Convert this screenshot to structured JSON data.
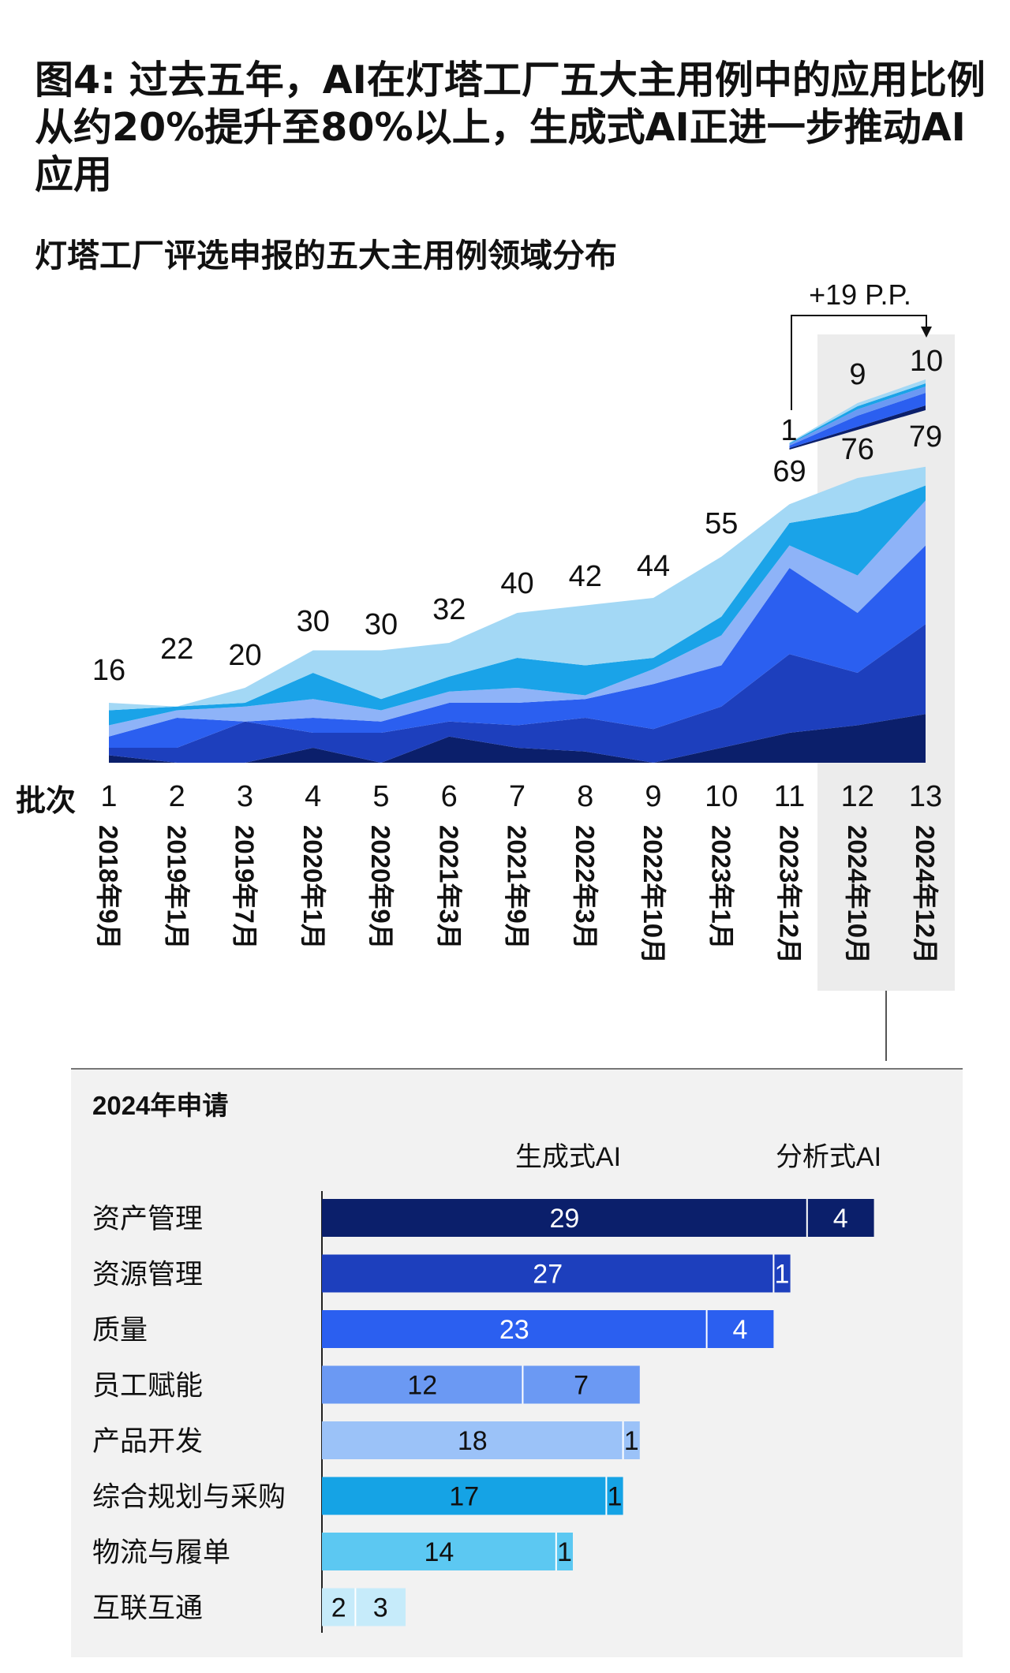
{
  "title": "图4: 过去五年，AI在灯塔工厂五大主用例中的应用比例从约20%提升至80%以上，生成式AI正进一步推动AI应用",
  "subtitle": "灯塔工厂评选申报的五大主用例领域分布",
  "chart_data": [
    {
      "type": "area",
      "title": "灯塔工厂评选申报的五大主用例领域分布",
      "xlabel": "批次",
      "categories": [
        "1",
        "2",
        "3",
        "4",
        "5",
        "6",
        "7",
        "8",
        "9",
        "10",
        "11",
        "12",
        "13"
      ],
      "dates": [
        "2018年9月",
        "2019年1月",
        "2019年7月",
        "2020年1月",
        "2020年9月",
        "2021年3月",
        "2021年9月",
        "2022年3月",
        "2022年10月",
        "2023年1月",
        "2023年12月",
        "2024年10月",
        "2024年12月"
      ],
      "totals": [
        16,
        22,
        20,
        30,
        30,
        32,
        40,
        42,
        44,
        55,
        69,
        76,
        79
      ],
      "genai_totals": [
        1,
        9,
        10
      ],
      "genai_batches": [
        "11",
        "12",
        "13"
      ],
      "stacked_series_estimated": [
        {
          "name": "layer1",
          "color": "#0b1f6b",
          "values": [
            2,
            0,
            0,
            4,
            0,
            7,
            4,
            3,
            0,
            4,
            8,
            10,
            13
          ]
        },
        {
          "name": "layer2",
          "color": "#1d3fbd",
          "values": [
            2,
            4,
            11,
            4,
            8,
            4,
            6,
            9,
            9,
            11,
            21,
            14,
            24
          ]
        },
        {
          "name": "layer3",
          "color": "#2b5ff0",
          "values": [
            3,
            8,
            0,
            4,
            3,
            5,
            6,
            5,
            12,
            11,
            23,
            16,
            21
          ]
        },
        {
          "name": "layer4",
          "color": "#8eb3f8",
          "values": [
            3,
            2,
            4,
            5,
            3,
            3,
            4,
            1,
            4,
            8,
            6,
            10,
            12
          ]
        },
        {
          "name": "layer5",
          "color": "#1aa3e8",
          "values": [
            4,
            1,
            1,
            7,
            3,
            4,
            8,
            8,
            3,
            5,
            6,
            17,
            4
          ]
        },
        {
          "name": "layer6",
          "color": "#a3d8f5",
          "values": [
            2,
            0,
            4,
            6,
            13,
            9,
            12,
            16,
            16,
            16,
            5,
            9,
            5
          ]
        }
      ],
      "annotation": "+19 P.P."
    },
    {
      "type": "bar",
      "title": "2024年申请",
      "legend": [
        "生成式AI",
        "分析式AI"
      ],
      "categories": [
        "资产管理",
        "资源管理",
        "质量",
        "员工赋能",
        "产品开发",
        "综合规划与采购",
        "物流与履单",
        "互联互通"
      ],
      "series": [
        {
          "name": "seg1",
          "values": [
            29,
            27,
            23,
            12,
            18,
            17,
            14,
            2
          ]
        },
        {
          "name": "seg2",
          "values": [
            4,
            1,
            4,
            7,
            1,
            1,
            1,
            3
          ]
        }
      ],
      "colors": [
        "#0b1f6b",
        "#1d3fbd",
        "#2b5ff0",
        "#6b99f3",
        "#9bc2f8",
        "#15a3e5",
        "#5cc8f2",
        "#c6ebfa"
      ],
      "label_colors": [
        "#ffffff",
        "#ffffff",
        "#ffffff",
        "#111111",
        "#111111",
        "#111111",
        "#111111",
        "#111111"
      ]
    }
  ]
}
